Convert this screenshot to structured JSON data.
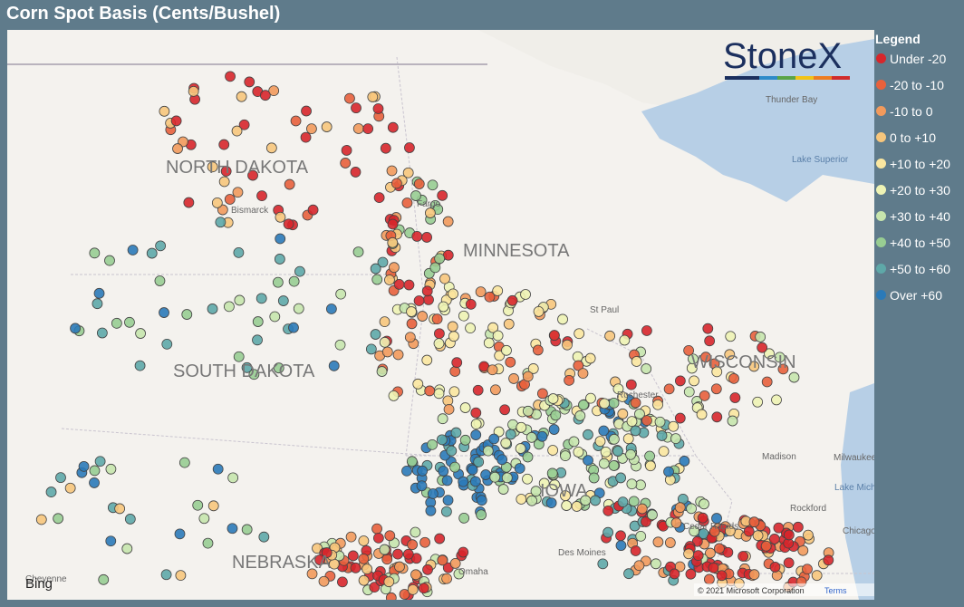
{
  "title": "Corn Spot Basis (Cents/Bushel)",
  "logo": "StoneX",
  "legend": {
    "title": "Legend",
    "items": [
      {
        "label": "Under -20",
        "color": "#d7262b"
      },
      {
        "label": "-20 to -10",
        "color": "#e8613c"
      },
      {
        "label": "-10 to 0",
        "color": "#f29a5c"
      },
      {
        "label": "0 to +10",
        "color": "#f7c67c"
      },
      {
        "label": "+10 to +20",
        "color": "#fbe7a0"
      },
      {
        "label": "+20 to +30",
        "color": "#eef3b4"
      },
      {
        "label": "+30 to +40",
        "color": "#c7e5ad"
      },
      {
        "label": "+40 to +50",
        "color": "#98cd92"
      },
      {
        "label": "+50 to +60",
        "color": "#5ea8a8"
      },
      {
        "label": "Over +60",
        "color": "#2b7ab8"
      }
    ]
  },
  "map_labels": {
    "states": [
      "NORTH DAKOTA",
      "MINNESOTA",
      "SOUTH DAKOTA",
      "WISCONSIN",
      "IOWA",
      "NEBRASKA"
    ],
    "cities": [
      "Bismarck",
      "Fargo",
      "St Paul",
      "Rochester",
      "Madison",
      "Milwaukee",
      "Rockford",
      "Chicago",
      "Cedar Rapids",
      "Des Moines",
      "Omaha",
      "Cheyenne",
      "Thunder Bay"
    ],
    "water": [
      "Lake Superior",
      "Lake Michigan"
    ]
  },
  "attribution": {
    "provider": "Bing",
    "copyright": "© 2021 Microsoft Corporation",
    "terms": "Terms"
  }
}
